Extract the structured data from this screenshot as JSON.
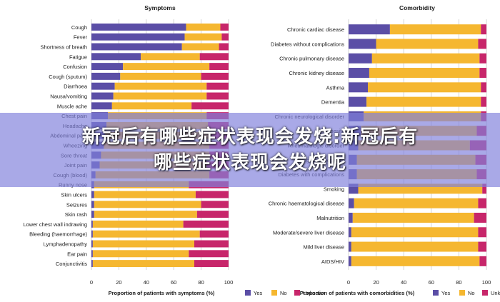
{
  "colors": {
    "yes": "#5b4ea6",
    "no": "#f5b730",
    "unknown": "#c7266a",
    "grid": "#c8c8c8",
    "text": "#1a1a1a"
  },
  "legend": {
    "yes": "Yes",
    "no": "No",
    "unknown": "Unknown"
  },
  "overlay": {
    "line1": "新冠后有哪些症状表现会发烧:新冠后有",
    "line2": "哪些症状表现会发烧呢"
  },
  "chart_data": [
    {
      "type": "bar",
      "orientation": "horizontal",
      "stacked": true,
      "title": "Symptoms",
      "xlabel": "Proportion of patients with symptoms (%)",
      "xlim": [
        0,
        100
      ],
      "xticks": [
        "0",
        "20",
        "40",
        "60",
        "80",
        "100"
      ],
      "categories": [
        "Cough",
        "Fever",
        "Shortness of breath",
        "Fatigue",
        "Confusion",
        "Cough (sputum)",
        "Diarrhoea",
        "Nausa/vomiting",
        "Muscle ache",
        "Chest pain",
        "Headache",
        "Abdominal pain",
        "Wheezing",
        "Sore throat",
        "Joint pain",
        "Cough (blood)",
        "Runny nose",
        "Skin ulcers",
        "Seizures",
        "Skin rash",
        "Lower chest wall indrawing",
        "Bleeding (haemorrhage)",
        "Lymphadenopathy",
        "Ear pain",
        "Conjunctivitis"
      ],
      "series": [
        {
          "name": "Yes",
          "values": [
            69,
            68,
            66,
            36,
            23,
            21,
            17,
            16,
            15,
            12,
            11,
            10,
            9,
            7,
            6,
            3,
            2,
            2,
            2,
            2,
            1,
            1,
            1,
            1,
            1
          ]
        },
        {
          "name": "No",
          "values": [
            25,
            27,
            27,
            43,
            63,
            59,
            67,
            68,
            58,
            72,
            74,
            76,
            77,
            79,
            78,
            83,
            69,
            74,
            78,
            75,
            66,
            78,
            74,
            70,
            74
          ]
        },
        {
          "name": "Unknown",
          "values": [
            6,
            5,
            7,
            21,
            14,
            20,
            16,
            16,
            27,
            16,
            15,
            14,
            14,
            14,
            16,
            14,
            29,
            24,
            20,
            23,
            33,
            21,
            25,
            29,
            25
          ]
        }
      ],
      "legend": "bottom"
    },
    {
      "type": "bar",
      "orientation": "horizontal",
      "stacked": true,
      "title": "Comorbidity",
      "xlabel": "Proportion of patients with comorbidities (%)",
      "xlim": [
        0,
        100
      ],
      "xticks": [
        "0",
        "20",
        "40",
        "60",
        "80",
        "100"
      ],
      "categories": [
        "Chronic cardiac disease",
        "Diabetes without complications",
        "Chronic pulmonary disease",
        "Chronic kidney disease",
        "Asthma",
        "Dementia",
        "Chronic neurological disorder",
        "Obesity",
        "Rheumatologic disorder",
        "Malignant neoplasm",
        "Diabetes with complications",
        "Smoking",
        "Chronic haematological disease",
        "Malnutrition",
        "Moderate/severe liver disease",
        "Mild liver disease",
        "AIDS/HIV"
      ],
      "series": [
        {
          "name": "Yes",
          "values": [
            30,
            20,
            17,
            15,
            14,
            13,
            11,
            9,
            7,
            6,
            6,
            7,
            4,
            3,
            2,
            2,
            2
          ]
        },
        {
          "name": "No",
          "values": [
            66,
            74,
            78,
            80,
            82,
            83,
            85,
            84,
            81,
            86,
            87,
            90,
            90,
            88,
            92,
            92,
            93
          ]
        },
        {
          "name": "Unknown",
          "values": [
            4,
            6,
            5,
            5,
            4,
            4,
            4,
            7,
            12,
            8,
            7,
            3,
            6,
            9,
            6,
            6,
            5
          ]
        }
      ],
      "legend": "bottom"
    }
  ]
}
